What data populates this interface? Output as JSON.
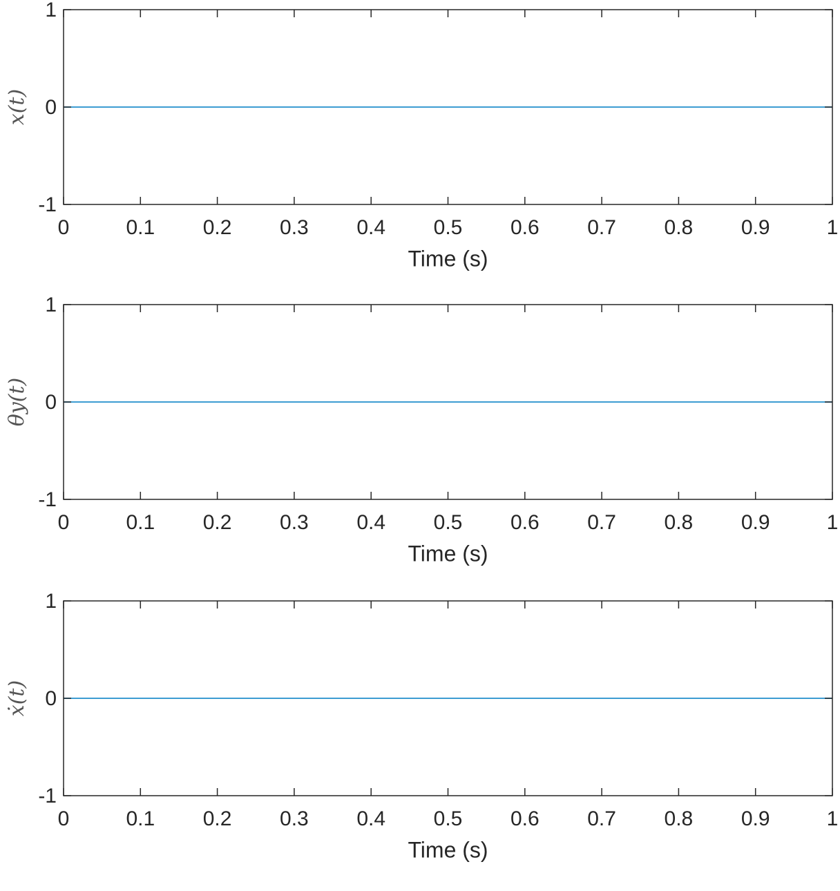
{
  "chart_data": [
    {
      "type": "line",
      "ylabel": "x(t)",
      "xlabel": "Time (s)",
      "x": [
        0,
        1
      ],
      "series": [
        {
          "color": "#3d9cd2",
          "values": [
            0,
            0
          ]
        }
      ],
      "xlim": [
        0,
        1
      ],
      "ylim": [
        -1,
        1
      ],
      "xticks": [
        0,
        0.1,
        0.2,
        0.3,
        0.4,
        0.5,
        0.6,
        0.7,
        0.8,
        0.9,
        1
      ],
      "yticks": [
        -1,
        0,
        1
      ]
    },
    {
      "type": "line",
      "ylabel": "θy(t)",
      "xlabel": "Time (s)",
      "x": [
        0,
        1
      ],
      "series": [
        {
          "color": "#3d9cd2",
          "values": [
            0,
            0
          ]
        }
      ],
      "xlim": [
        0,
        1
      ],
      "ylim": [
        -1,
        1
      ],
      "xticks": [
        0,
        0.1,
        0.2,
        0.3,
        0.4,
        0.5,
        0.6,
        0.7,
        0.8,
        0.9,
        1
      ],
      "yticks": [
        -1,
        0,
        1
      ]
    },
    {
      "type": "line",
      "ylabel": "ẋ(t)",
      "xlabel": "Time (s)",
      "x": [
        0,
        1
      ],
      "series": [
        {
          "color": "#3d9cd2",
          "values": [
            0,
            0
          ]
        }
      ],
      "xlim": [
        0,
        1
      ],
      "ylim": [
        -1,
        1
      ],
      "xticks": [
        0,
        0.1,
        0.2,
        0.3,
        0.4,
        0.5,
        0.6,
        0.7,
        0.8,
        0.9,
        1
      ],
      "yticks": [
        -1,
        0,
        1
      ]
    }
  ]
}
